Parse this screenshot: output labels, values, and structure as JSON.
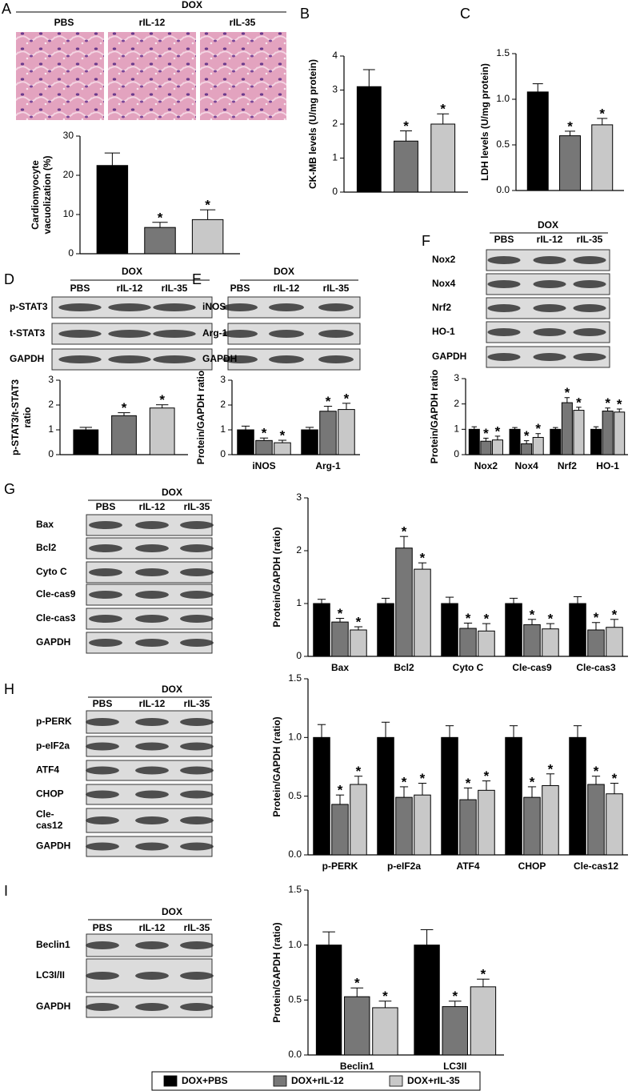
{
  "panels": [
    {
      "letter": "A",
      "header": "DOX",
      "lanes": [
        "PBS",
        "rIL-12",
        "rIL-35"
      ]
    },
    {
      "letter": "B"
    },
    {
      "letter": "C"
    },
    {
      "letter": "D",
      "header": "DOX",
      "lanes": [
        "PBS",
        "rIL-12",
        "rIL-35"
      ],
      "rows": [
        [
          "p-STAT3"
        ],
        [
          "t-STAT3"
        ],
        [
          "GAPDH"
        ]
      ]
    },
    {
      "letter": "E",
      "header": "DOX",
      "lanes": [
        "PBS",
        "rIL-12",
        "rIL-35"
      ],
      "rows": [
        [
          "iNOS"
        ],
        [
          "Arg-1"
        ],
        [
          "GAPDH"
        ]
      ]
    },
    {
      "letter": "F",
      "header": "DOX",
      "lanes": [
        "PBS",
        "rIL-12",
        "rIL-35"
      ],
      "rows": [
        [
          "Nox2"
        ],
        [
          "Nox4"
        ],
        [
          "Nrf2"
        ],
        [
          "HO-1"
        ],
        [
          "GAPDH"
        ]
      ]
    },
    {
      "letter": "G",
      "header": "DOX",
      "lanes": [
        "PBS",
        "rIL-12",
        "rIL-35"
      ],
      "rows": [
        [
          "Bax"
        ],
        [
          "Bcl2"
        ],
        [
          "Cyto C"
        ],
        [
          "Cle-cas9"
        ],
        [
          "Cle-cas3"
        ],
        [
          "GAPDH"
        ]
      ]
    },
    {
      "letter": "H",
      "header": "DOX",
      "lanes": [
        "PBS",
        "rIL-12",
        "rIL-35"
      ],
      "rows": [
        [
          "p-PERK"
        ],
        [
          "p-eIF2a"
        ],
        [
          "ATF4"
        ],
        [
          "CHOP"
        ],
        [
          "Cle-",
          "cas12"
        ],
        [
          "GAPDH"
        ]
      ]
    },
    {
      "letter": "I",
      "header": "DOX",
      "lanes": [
        "PBS",
        "rIL-12",
        "rIL-35"
      ],
      "rows": [
        [
          "Beclin1"
        ],
        [
          "LC3I/II"
        ],
        [
          "GAPDH"
        ]
      ]
    }
  ],
  "legend": [
    {
      "name": "DOX+PBS",
      "color": "#000000"
    },
    {
      "name": "DOX+rIL-12",
      "color": "#777777"
    },
    {
      "name": "DOX+rIL-35",
      "color": "#c8c8c8"
    }
  ],
  "chart_data": [
    {
      "type": "bar",
      "ylabel": [
        "Cardiomyocyte",
        "vacuolization (%)"
      ],
      "categories": [
        null
      ],
      "ylim": [
        0,
        30
      ],
      "yticks": [
        0,
        10,
        20,
        30
      ],
      "series": [
        {
          "values": [
            22.5
          ],
          "errors": [
            3.2
          ],
          "significance": [
            null
          ]
        },
        {
          "values": [
            6.7
          ],
          "errors": [
            1.3
          ],
          "significance": [
            "*"
          ]
        },
        {
          "values": [
            8.7
          ],
          "errors": [
            2.5
          ],
          "significance": [
            "*"
          ]
        }
      ]
    },
    {
      "type": "bar",
      "ylabel": [
        "CK-MB levels (U/mg protein)"
      ],
      "categories": [
        null
      ],
      "ylim": [
        0,
        4
      ],
      "yticks": [
        0,
        1,
        2,
        3,
        4
      ],
      "series": [
        {
          "values": [
            3.1
          ],
          "errors": [
            0.5
          ],
          "significance": [
            null
          ]
        },
        {
          "values": [
            1.5
          ],
          "errors": [
            0.3
          ],
          "significance": [
            "*"
          ]
        },
        {
          "values": [
            2.0
          ],
          "errors": [
            0.3
          ],
          "significance": [
            "*"
          ]
        }
      ]
    },
    {
      "type": "bar",
      "ylabel": [
        "LDH levels (U/mg protein)"
      ],
      "categories": [
        null
      ],
      "ylim": [
        0,
        1.5
      ],
      "yticks": [
        {
          "value": 0,
          "label": "0.0"
        },
        0.5,
        {
          "value": 1,
          "label": "1.0"
        },
        1.5
      ],
      "series": [
        {
          "values": [
            1.08
          ],
          "errors": [
            0.09
          ],
          "significance": [
            null
          ]
        },
        {
          "values": [
            0.6
          ],
          "errors": [
            0.05
          ],
          "significance": [
            "*"
          ]
        },
        {
          "values": [
            0.72
          ],
          "errors": [
            0.07
          ],
          "significance": [
            "*"
          ]
        }
      ]
    },
    {
      "type": "bar",
      "ylabel": [
        "p-STAT3/t-STAT3",
        "ratio"
      ],
      "categories": [
        null
      ],
      "ylim": [
        0,
        3
      ],
      "yticks": [
        0,
        1,
        2,
        3
      ],
      "series": [
        {
          "values": [
            1.0
          ],
          "errors": [
            0.1
          ],
          "significance": [
            null
          ]
        },
        {
          "values": [
            1.57
          ],
          "errors": [
            0.12
          ],
          "significance": [
            "*"
          ]
        },
        {
          "values": [
            1.88
          ],
          "errors": [
            0.13
          ],
          "significance": [
            "*"
          ]
        }
      ]
    },
    {
      "type": "bar",
      "ylabel": [
        "Protein/GAPDH ratio"
      ],
      "categories": [
        "iNOS",
        "Arg-1"
      ],
      "ylim": [
        0,
        3
      ],
      "yticks": [
        0,
        1,
        2,
        3
      ],
      "series": [
        {
          "values": [
            1.0,
            1.0
          ],
          "errors": [
            0.15,
            0.1
          ],
          "significance": [
            null,
            null
          ]
        },
        {
          "values": [
            0.57,
            1.75
          ],
          "errors": [
            0.1,
            0.2
          ],
          "significance": [
            "*",
            "*"
          ]
        },
        {
          "values": [
            0.48,
            1.82
          ],
          "errors": [
            0.1,
            0.25
          ],
          "significance": [
            "*",
            "*"
          ]
        }
      ]
    },
    {
      "type": "bar",
      "ylabel": [
        "Protein/GAPDH ratio"
      ],
      "categories": [
        "Nox2",
        "Nox4",
        "Nrf2",
        "HO-1"
      ],
      "ylim": [
        0,
        3
      ],
      "yticks": [
        0,
        1,
        2,
        3
      ],
      "series": [
        {
          "values": [
            1.0,
            1.0,
            1.0,
            1.0
          ],
          "errors": [
            0.1,
            0.07,
            0.07,
            0.1
          ],
          "significance": [
            null,
            null,
            null,
            null
          ]
        },
        {
          "values": [
            0.53,
            0.43,
            2.05,
            1.72
          ],
          "errors": [
            0.12,
            0.12,
            0.2,
            0.12
          ],
          "significance": [
            "*",
            "*",
            "*",
            "*"
          ]
        },
        {
          "values": [
            0.58,
            0.68,
            1.75,
            1.68
          ],
          "errors": [
            0.15,
            0.15,
            0.12,
            0.12
          ],
          "significance": [
            "*",
            "*",
            "*",
            "*"
          ]
        }
      ]
    },
    {
      "type": "bar",
      "ylabel": [
        "Protein/GAPDH (ratio)"
      ],
      "categories": [
        "Bax",
        "Bcl2",
        "Cyto C",
        "Cle-cas9",
        "Cle-cas3"
      ],
      "ylim": [
        0,
        3
      ],
      "yticks": [
        0,
        1,
        2,
        3
      ],
      "series": [
        {
          "values": [
            1.0,
            1.0,
            1.0,
            1.0,
            1.0
          ],
          "errors": [
            0.08,
            0.1,
            0.12,
            0.1,
            0.13
          ],
          "significance": [
            null,
            null,
            null,
            null,
            null
          ]
        },
        {
          "values": [
            0.65,
            2.05,
            0.53,
            0.6,
            0.5
          ],
          "errors": [
            0.07,
            0.22,
            0.1,
            0.1,
            0.14
          ],
          "significance": [
            "*",
            "*",
            "*",
            "*",
            "*"
          ]
        },
        {
          "values": [
            0.5,
            1.65,
            0.48,
            0.52,
            0.55
          ],
          "errors": [
            0.06,
            0.12,
            0.14,
            0.1,
            0.15
          ],
          "significance": [
            "*",
            "*",
            "*",
            "*",
            "*"
          ]
        }
      ]
    },
    {
      "type": "bar",
      "ylabel": [
        "Protein/GAPDH (ratio)"
      ],
      "categories": [
        "p-PERK",
        "p-eIF2a",
        "ATF4",
        "CHOP",
        "Cle-cas12"
      ],
      "ylim": [
        0,
        1.5
      ],
      "yticks": [
        {
          "value": 0,
          "label": "0.0"
        },
        0.5,
        {
          "value": 1,
          "label": "1.0"
        },
        1.5
      ],
      "series": [
        {
          "values": [
            1.0,
            1.0,
            1.0,
            1.0,
            1.0
          ],
          "errors": [
            0.11,
            0.13,
            0.1,
            0.1,
            0.1
          ],
          "significance": [
            null,
            null,
            null,
            null,
            null
          ]
        },
        {
          "values": [
            0.43,
            0.49,
            0.47,
            0.49,
            0.6
          ],
          "errors": [
            0.08,
            0.09,
            0.1,
            0.09,
            0.07
          ],
          "significance": [
            "*",
            "*",
            "*",
            "*",
            "*"
          ]
        },
        {
          "values": [
            0.6,
            0.51,
            0.55,
            0.59,
            0.52
          ],
          "errors": [
            0.07,
            0.1,
            0.08,
            0.1,
            0.09
          ],
          "significance": [
            "*",
            "*",
            "*",
            "*",
            "*"
          ]
        }
      ]
    },
    {
      "type": "bar",
      "ylabel": [
        "Protein/GAPDH (ratio)"
      ],
      "categories": [
        "Beclin1",
        "LC3II"
      ],
      "ylim": [
        0,
        1.5
      ],
      "yticks": [
        {
          "value": 0,
          "label": "0.0"
        },
        0.5,
        {
          "value": 1,
          "label": "1.0"
        },
        1.5
      ],
      "series": [
        {
          "values": [
            1.0,
            1.0
          ],
          "errors": [
            0.12,
            0.14
          ],
          "significance": [
            null,
            null
          ]
        },
        {
          "values": [
            0.53,
            0.44
          ],
          "errors": [
            0.08,
            0.05
          ],
          "significance": [
            "*",
            "*"
          ]
        },
        {
          "values": [
            0.43,
            0.62
          ],
          "errors": [
            0.06,
            0.07
          ],
          "significance": [
            "*",
            "*"
          ]
        }
      ]
    }
  ]
}
